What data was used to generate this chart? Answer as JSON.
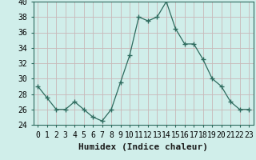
{
  "x": [
    0,
    1,
    2,
    3,
    4,
    5,
    6,
    7,
    8,
    9,
    10,
    11,
    12,
    13,
    14,
    15,
    16,
    17,
    18,
    19,
    20,
    21,
    22,
    23
  ],
  "y": [
    29,
    27.5,
    26,
    26,
    27,
    26,
    25,
    24.5,
    26,
    29.5,
    33,
    38,
    37.5,
    38,
    40,
    36.5,
    34.5,
    34.5,
    32.5,
    30,
    29,
    27,
    26,
    26
  ],
  "line_color": "#2e6b5e",
  "marker": "+",
  "marker_size": 5,
  "marker_color": "#2e6b5e",
  "background_color": "#d0eeea",
  "grid_color_h": "#c8b8b8",
  "grid_color_v": "#c8b8b8",
  "xlabel": "Humidex (Indice chaleur)",
  "ylim": [
    24,
    40
  ],
  "xlim": [
    -0.5,
    23.5
  ],
  "yticks": [
    24,
    26,
    28,
    30,
    32,
    34,
    36,
    38,
    40
  ],
  "xtick_labels": [
    "0",
    "1",
    "2",
    "3",
    "4",
    "5",
    "6",
    "7",
    "8",
    "9",
    "10",
    "11",
    "12",
    "13",
    "14",
    "15",
    "16",
    "17",
    "18",
    "19",
    "20",
    "21",
    "22",
    "23"
  ],
  "xlabel_fontsize": 8,
  "tick_fontsize": 7
}
